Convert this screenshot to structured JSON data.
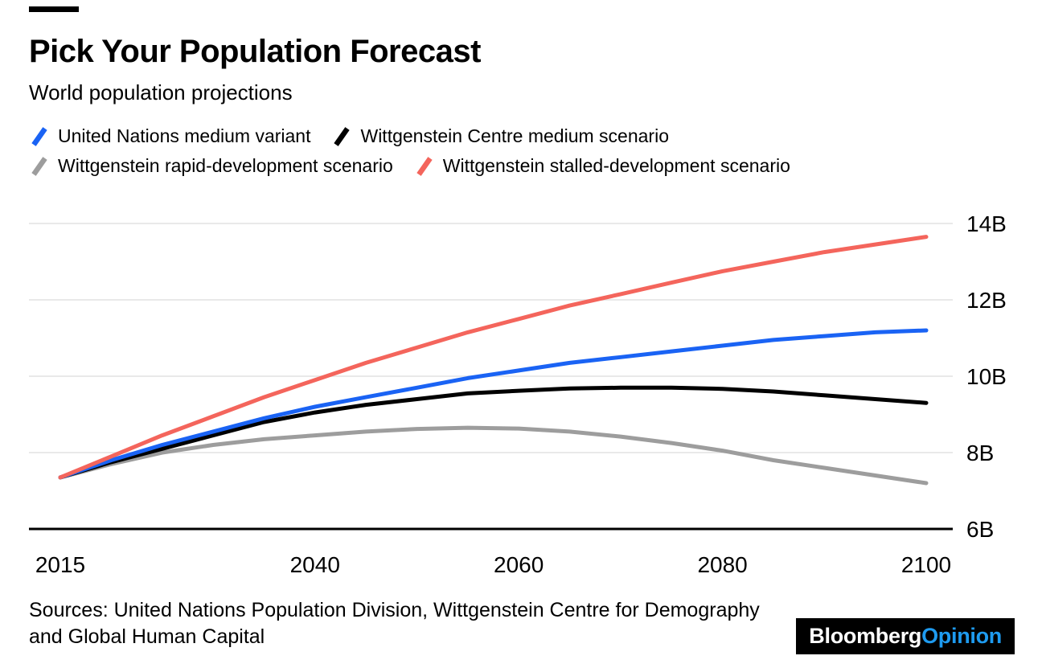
{
  "header": {
    "title": "Pick Your Population Forecast",
    "subtitle": "World population projections"
  },
  "legend": [
    {
      "label": "United Nations medium variant",
      "color": "#1a63f4"
    },
    {
      "label": "Wittgenstein Centre medium scenario",
      "color": "#000000"
    },
    {
      "label": "Wittgenstein rapid-development scenario",
      "color": "#9d9d9d"
    },
    {
      "label": "Wittgenstein stalled-development scenario",
      "color": "#f4655c"
    }
  ],
  "chart_data": {
    "type": "line",
    "title": "Pick Your Population Forecast",
    "subtitle": "World population projections",
    "unit": "billions of people",
    "xlim": [
      2015,
      2100
    ],
    "ylim": [
      6,
      14
    ],
    "grid": "horizontal",
    "legend_position": "top",
    "x": [
      2015,
      2020,
      2025,
      2030,
      2035,
      2040,
      2045,
      2050,
      2055,
      2060,
      2065,
      2070,
      2075,
      2080,
      2085,
      2090,
      2095,
      2100
    ],
    "series": [
      {
        "id": "un-medium",
        "name": "United Nations medium variant",
        "color": "#1a63f4",
        "values": [
          7.35,
          7.8,
          8.2,
          8.55,
          8.9,
          9.2,
          9.45,
          9.7,
          9.95,
          10.15,
          10.35,
          10.5,
          10.65,
          10.8,
          10.95,
          11.05,
          11.15,
          11.2
        ]
      },
      {
        "id": "wittgenstein-medium",
        "name": "Wittgenstein Centre medium scenario",
        "color": "#000000",
        "values": [
          7.35,
          7.75,
          8.1,
          8.45,
          8.8,
          9.05,
          9.25,
          9.4,
          9.55,
          9.62,
          9.68,
          9.7,
          9.7,
          9.67,
          9.6,
          9.5,
          9.4,
          9.3
        ]
      },
      {
        "id": "wittgenstein-rapid",
        "name": "Wittgenstein rapid-development scenario",
        "color": "#9d9d9d",
        "values": [
          7.35,
          7.7,
          8.0,
          8.2,
          8.35,
          8.45,
          8.55,
          8.62,
          8.65,
          8.63,
          8.55,
          8.42,
          8.25,
          8.05,
          7.8,
          7.6,
          7.4,
          7.2
        ]
      },
      {
        "id": "wittgenstein-stalled",
        "name": "Wittgenstein stalled-development scenario",
        "color": "#f4655c",
        "values": [
          7.35,
          7.9,
          8.45,
          8.95,
          9.45,
          9.9,
          10.35,
          10.75,
          11.15,
          11.5,
          11.85,
          12.15,
          12.45,
          12.75,
          13.0,
          13.25,
          13.45,
          13.65
        ]
      }
    ],
    "x_ticks": [
      2015,
      2040,
      2060,
      2080,
      2100
    ],
    "y_tick_values": [
      6,
      8,
      10,
      12,
      14
    ],
    "y_ticks": [
      "6B",
      "8B",
      "10B",
      "12B",
      "14B"
    ]
  },
  "footer": {
    "sources": "Sources: United Nations Population Division, Wittgenstein Centre for Demography and Global Human Capital",
    "logo": {
      "bloomberg": "Bloomberg",
      "opinion": "Opinion"
    }
  }
}
